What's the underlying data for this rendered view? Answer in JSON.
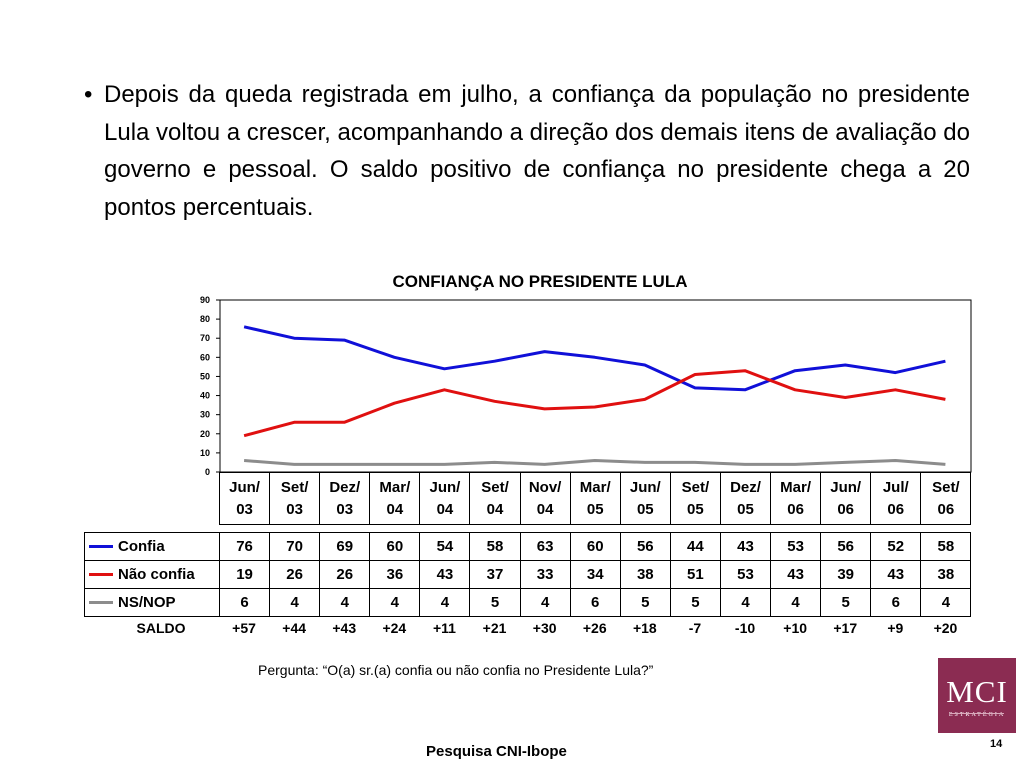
{
  "bullet_text": "Depois da queda registrada em julho, a confiança da população no presidente Lula voltou a crescer, acompanhando a direção dos demais itens de avaliação do governo e pessoal. O saldo positivo de confiança no presidente chega a 20 pontos percentuais.",
  "bullet_symbol": "•",
  "colors": {
    "confia": "#1010d8",
    "nao_confia": "#e01010",
    "nsnop": "#8c8c8c"
  },
  "chart_data": {
    "type": "line",
    "title": "CONFIANÇA NO PRESIDENTE LULA",
    "xlabel": "",
    "ylabel": "",
    "ylim": [
      0,
      90
    ],
    "yticks": [
      "0",
      "10",
      "20",
      "30",
      "40",
      "50",
      "60",
      "70",
      "80",
      "90"
    ],
    "grid": false,
    "categories": [
      [
        "Jun/",
        "03"
      ],
      [
        "Set/",
        "03"
      ],
      [
        "Dez/",
        "03"
      ],
      [
        "Mar/",
        "04"
      ],
      [
        "Jun/",
        "04"
      ],
      [
        "Set/",
        "04"
      ],
      [
        "Nov/",
        "04"
      ],
      [
        "Mar/",
        "05"
      ],
      [
        "Jun/",
        "05"
      ],
      [
        "Set/",
        "05"
      ],
      [
        "Dez/",
        "05"
      ],
      [
        "Mar/",
        "06"
      ],
      [
        "Jun/",
        "06"
      ],
      [
        "Jul/",
        "06"
      ],
      [
        "Set/",
        "06"
      ]
    ],
    "series": [
      {
        "name": "Confia",
        "color": "#1010d8",
        "values": [
          76,
          70,
          69,
          60,
          54,
          58,
          63,
          60,
          56,
          44,
          43,
          53,
          56,
          52,
          58
        ]
      },
      {
        "name": "Não confia",
        "color": "#e01010",
        "values": [
          19,
          26,
          26,
          36,
          43,
          37,
          33,
          34,
          38,
          51,
          53,
          43,
          39,
          43,
          38
        ]
      },
      {
        "name": "NS/NOP",
        "color": "#8c8c8c",
        "values": [
          6,
          4,
          4,
          4,
          4,
          5,
          4,
          6,
          5,
          5,
          4,
          4,
          5,
          6,
          4
        ]
      }
    ],
    "saldo_label": "SALDO",
    "saldo": [
      "+57",
      "+44",
      "+43",
      "+24",
      "+11",
      "+21",
      "+30",
      "+26",
      "+18",
      "-7",
      "-10",
      "+10",
      "+17",
      "+9",
      "+20"
    ]
  },
  "question": "Pergunta: “O(a) sr.(a) confia ou não confia no Presidente Lula?”",
  "source": "Pesquisa CNI-Ibope",
  "page_number": "14",
  "logo": {
    "main": "MCI",
    "sub": "ESTRATÉGIA"
  }
}
